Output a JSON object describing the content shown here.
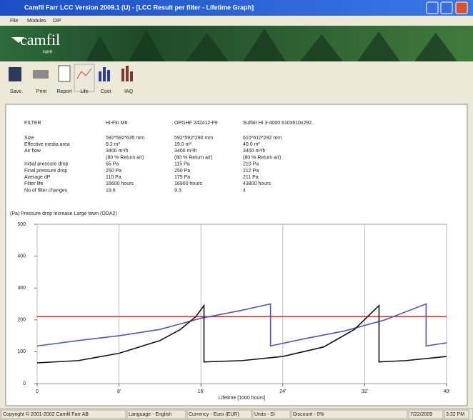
{
  "window": {
    "title": "Camfil Farr LCC Version 2009.1 (U) - [LCC Result per filter - Lifetime Graph]"
  },
  "menu": [
    "File",
    "Modules",
    "DIP"
  ],
  "banner": {
    "logo": "camfil",
    "tagline": "FARR"
  },
  "toolbar": [
    "Save",
    "Print",
    "Report",
    "Life",
    "Cost",
    "IAQ"
  ],
  "table": {
    "header": [
      "FILTER",
      "Hi-Flo M6",
      "OPGHF 242412-F9",
      "Sulfair Hi 3-4000 610x610x292"
    ],
    "rows": [
      [
        "Size",
        "592*592*635 mm",
        "592*592*290 mm",
        "610*610*292 mm"
      ],
      [
        "Effective media area",
        "9.2 m²",
        "19.0 m²",
        "40.0 m²"
      ],
      [
        "Air flow",
        "3400 m³/h",
        "3400 m³/h",
        "3400 m³/h"
      ],
      [
        "",
        "(80 % Return air)",
        "(80 % Return air)",
        "(80 % Return air)"
      ],
      [
        "Initial pressure drop",
        "65 Pa",
        "115 Pa",
        "210 Pa"
      ],
      [
        "Final pressure drop",
        "250 Pa",
        "250 Pa",
        "212 Pa"
      ],
      [
        "Average dP",
        "110 Pa",
        "175 Pa",
        "211 Pa"
      ],
      [
        "Filter life",
        "16600 hours",
        "16900 hours",
        "43800 hours"
      ],
      [
        "No of filter changes",
        "19.6",
        "9.3",
        "4"
      ]
    ]
  },
  "chart_data": {
    "type": "line",
    "ylabel": "(Pa) Pressure drop increase Large town (ODA2)",
    "xlabel": "Lifetime [1000 hours]",
    "xlim": [
      0,
      40
    ],
    "xticks": [
      0,
      {
        "value": 8,
        "label": "8'"
      },
      {
        "value": 16,
        "label": "16'"
      },
      {
        "value": 24,
        "label": "24'"
      },
      {
        "value": 32,
        "label": "32'"
      },
      {
        "value": 40,
        "label": "40'"
      }
    ],
    "ylim": [
      0,
      500
    ],
    "yticks": [
      0,
      100,
      200,
      300,
      400,
      500
    ],
    "grid": "x",
    "series": [
      {
        "color": "#e0301e",
        "x": [
          0,
          40
        ],
        "values": [
          210,
          210
        ]
      },
      {
        "color": "#5058b8",
        "x": [
          0,
          4,
          8,
          12,
          16,
          20,
          22.8,
          22.8,
          26,
          30,
          34,
          38,
          38,
          40
        ],
        "values": [
          118,
          135,
          150,
          170,
          205,
          230,
          250,
          118,
          140,
          165,
          200,
          250,
          118,
          128
        ]
      },
      {
        "color": "#111111",
        "x": [
          0,
          4,
          8,
          12,
          14,
          15.5,
          16.3,
          16.3,
          20,
          24,
          28,
          31,
          33.4,
          33.4,
          36,
          40
        ],
        "values": [
          65,
          72,
          95,
          135,
          170,
          210,
          245,
          68,
          72,
          85,
          115,
          170,
          245,
          68,
          72,
          85
        ]
      }
    ]
  },
  "status_bar": [
    "Copyright © 2001-2002 Camfil Farr AB",
    "Language - English",
    "Currency - Euro (EUR)",
    "Units - SI",
    "Discount - 0%",
    "7/22/2009",
    "3:32 PM"
  ]
}
